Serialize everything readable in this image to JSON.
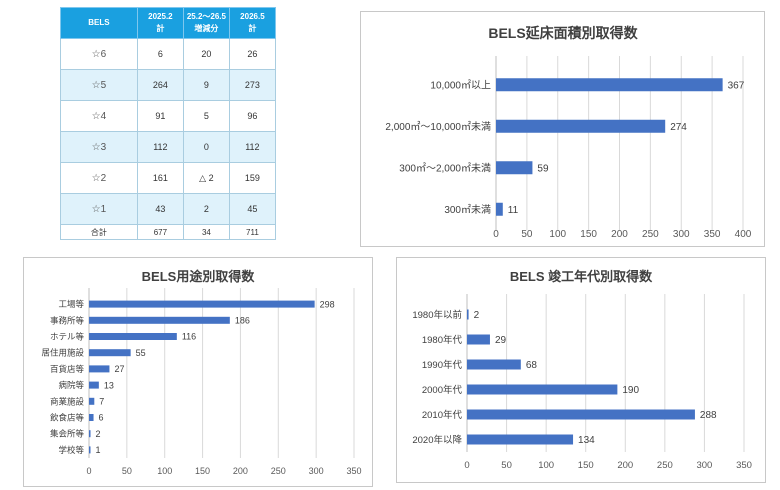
{
  "table": {
    "headers": [
      {
        "line1": "BELS",
        "line2": ""
      },
      {
        "line1": "2025.2",
        "line2": "計"
      },
      {
        "line1": "25.2～26.5",
        "line2": "増減分"
      },
      {
        "line1": "2026.5",
        "line2": "計"
      }
    ],
    "rows": [
      {
        "rank": "☆6",
        "a": "6",
        "b": "20",
        "c": "26"
      },
      {
        "rank": "☆5",
        "a": "264",
        "b": "9",
        "c": "273"
      },
      {
        "rank": "☆4",
        "a": "91",
        "b": "5",
        "c": "96"
      },
      {
        "rank": "☆3",
        "a": "112",
        "b": "0",
        "c": "112"
      },
      {
        "rank": "☆2",
        "a": "161",
        "b": "△ 2",
        "c": "159"
      },
      {
        "rank": "☆1",
        "a": "43",
        "b": "2",
        "c": "45"
      }
    ],
    "total": {
      "rank": "合計",
      "a": "677",
      "b": "34",
      "c": "711"
    }
  },
  "chart_data": [
    {
      "id": "floor",
      "type": "bar",
      "orientation": "horizontal",
      "title": "BELS延床面積別取得数",
      "categories": [
        "10,000㎡以上",
        "2,000㎡～10,000㎡未満",
        "300㎡～2,000㎡未満",
        "300㎡未満"
      ],
      "values": [
        367,
        274,
        59,
        11
      ],
      "xlim": [
        0,
        400
      ],
      "ticks": [
        0,
        50,
        100,
        150,
        200,
        250,
        300,
        350,
        400
      ],
      "grid": true,
      "color": "#4472c4"
    },
    {
      "id": "use",
      "type": "bar",
      "orientation": "horizontal",
      "title": "BELS用途別取得数",
      "categories": [
        "工場等",
        "事務所等",
        "ホテル等",
        "居住用施設",
        "百貨店等",
        "病院等",
        "商業施設",
        "飲食店等",
        "集会所等",
        "学校等"
      ],
      "values": [
        298,
        186,
        116,
        55,
        27,
        13,
        7,
        6,
        2,
        1
      ],
      "xlim": [
        0,
        350
      ],
      "ticks": [
        0,
        50,
        100,
        150,
        200,
        250,
        300,
        350
      ],
      "grid": true,
      "color": "#4472c4"
    },
    {
      "id": "year",
      "type": "bar",
      "orientation": "horizontal",
      "title": "BELS 竣工年代別取得数",
      "categories": [
        "1980年以前",
        "1980年代",
        "1990年代",
        "2000年代",
        "2010年代",
        "2020年以降"
      ],
      "values": [
        2,
        29,
        68,
        190,
        288,
        134
      ],
      "xlim": [
        0,
        350
      ],
      "ticks": [
        0,
        50,
        100,
        150,
        200,
        250,
        300,
        350
      ],
      "grid": true,
      "color": "#4472c4"
    }
  ]
}
